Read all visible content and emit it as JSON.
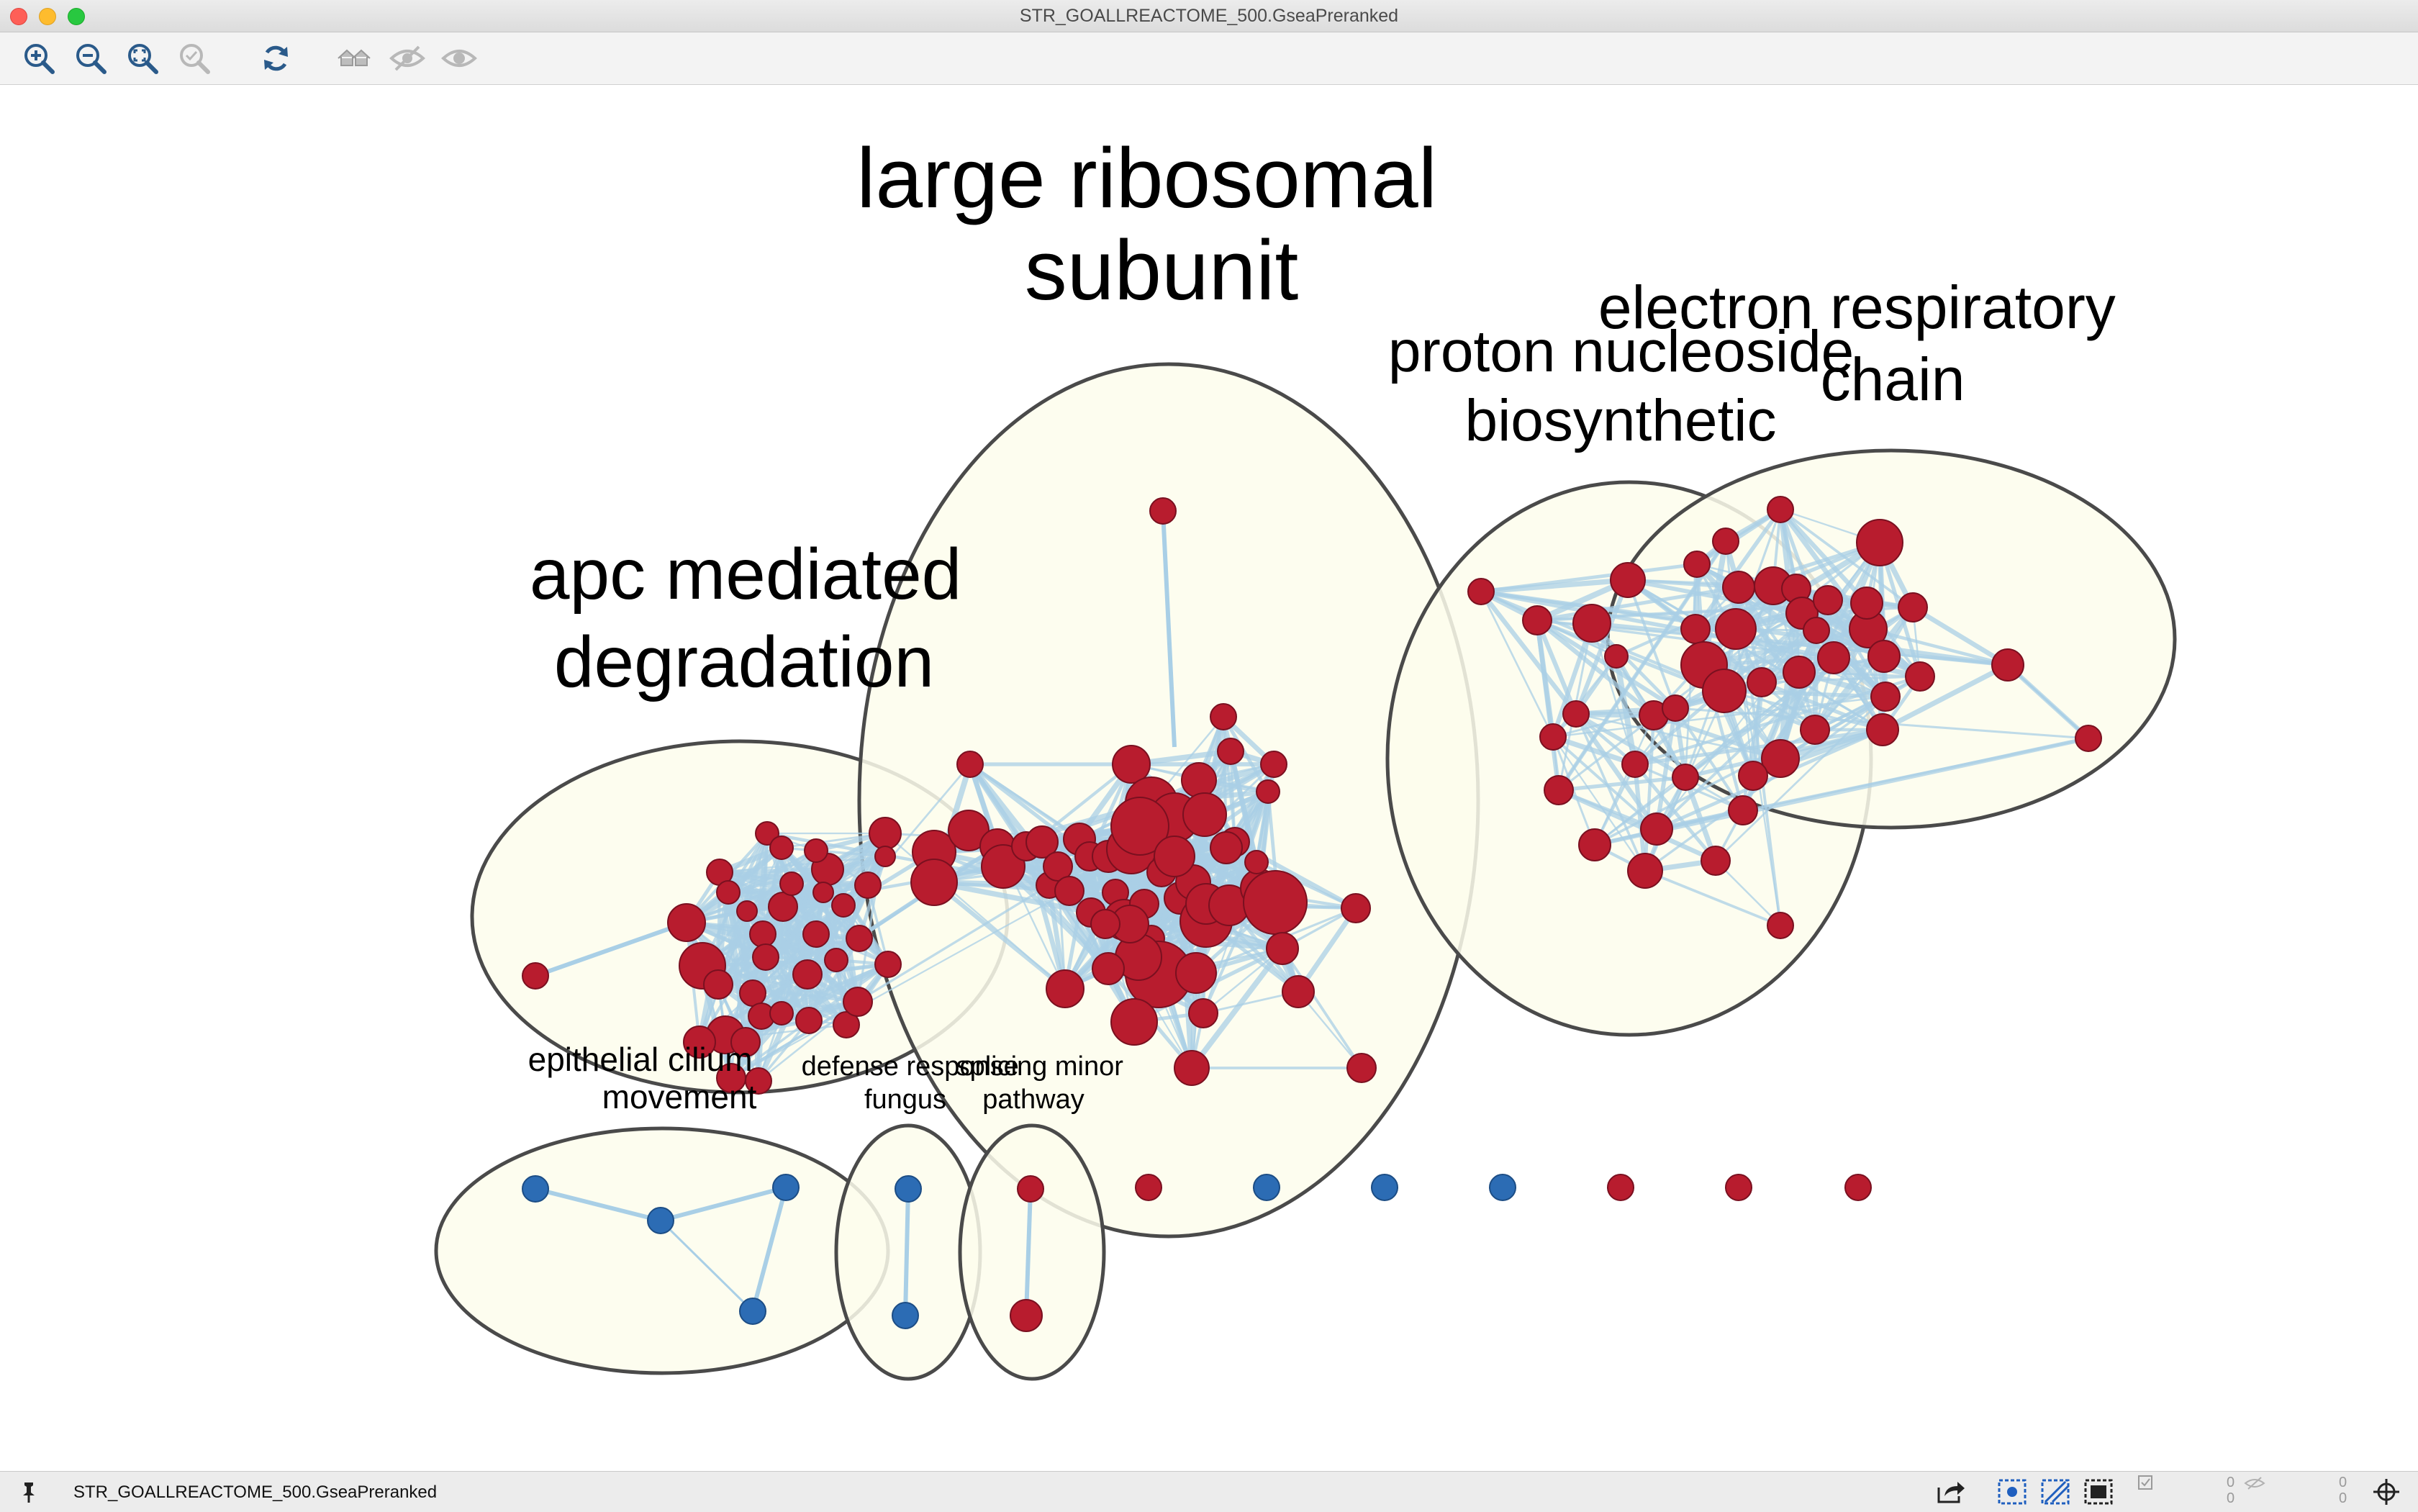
{
  "window": {
    "title": "STR_GOALLREACTOME_500.GseaPreranked"
  },
  "toolbar": {
    "buttons": [
      {
        "name": "zoom-in-button",
        "icon": "zoom-in-icon"
      },
      {
        "name": "zoom-out-button",
        "icon": "zoom-out-icon"
      },
      {
        "name": "zoom-fit-button",
        "icon": "zoom-fit-icon"
      },
      {
        "name": "zoom-selected-button",
        "icon": "zoom-selected-icon"
      },
      {
        "name": "refresh-button",
        "icon": "refresh-icon"
      },
      {
        "name": "show-all-button",
        "icon": "home-icon"
      },
      {
        "name": "hide-button",
        "icon": "eye-hidden-icon"
      },
      {
        "name": "show-button",
        "icon": "eye-icon"
      }
    ]
  },
  "network": {
    "colors": {
      "upregulated": "#b81c2e",
      "downregulated": "#2c6cb4",
      "edge": "#a9cfe6",
      "cluster_fill": "#fdfdec",
      "cluster_stroke": "#4a4a4a"
    },
    "clusters": [
      {
        "id": "large-ribosomal-subunit",
        "label_lines": [
          "large ribosomal",
          "subunit"
        ]
      },
      {
        "id": "apc-mediated-degradation",
        "label_lines": [
          "apc mediated",
          "degradation"
        ]
      },
      {
        "id": "proton-nucleoside-biosynthetic",
        "label_lines": [
          "proton nucleoside",
          "biosynthetic"
        ]
      },
      {
        "id": "electron-respiratory-chain",
        "label_lines": [
          "electron respiratory",
          "chain"
        ]
      },
      {
        "id": "epithelial-cilium-movement",
        "label_lines": [
          "epithelial cilium",
          "movement"
        ]
      },
      {
        "id": "defense-response-fungus",
        "label_lines": [
          "defense response",
          "fungus"
        ]
      },
      {
        "id": "splicing-minor-pathway",
        "label_lines": [
          "splicing minor",
          "pathway"
        ]
      }
    ]
  },
  "status": {
    "network_name": "STR_GOALLREACTOME_500.GseaPreranked",
    "counter_a": "0",
    "counter_b": "0",
    "counter_c": "0",
    "counter_d": "0"
  }
}
